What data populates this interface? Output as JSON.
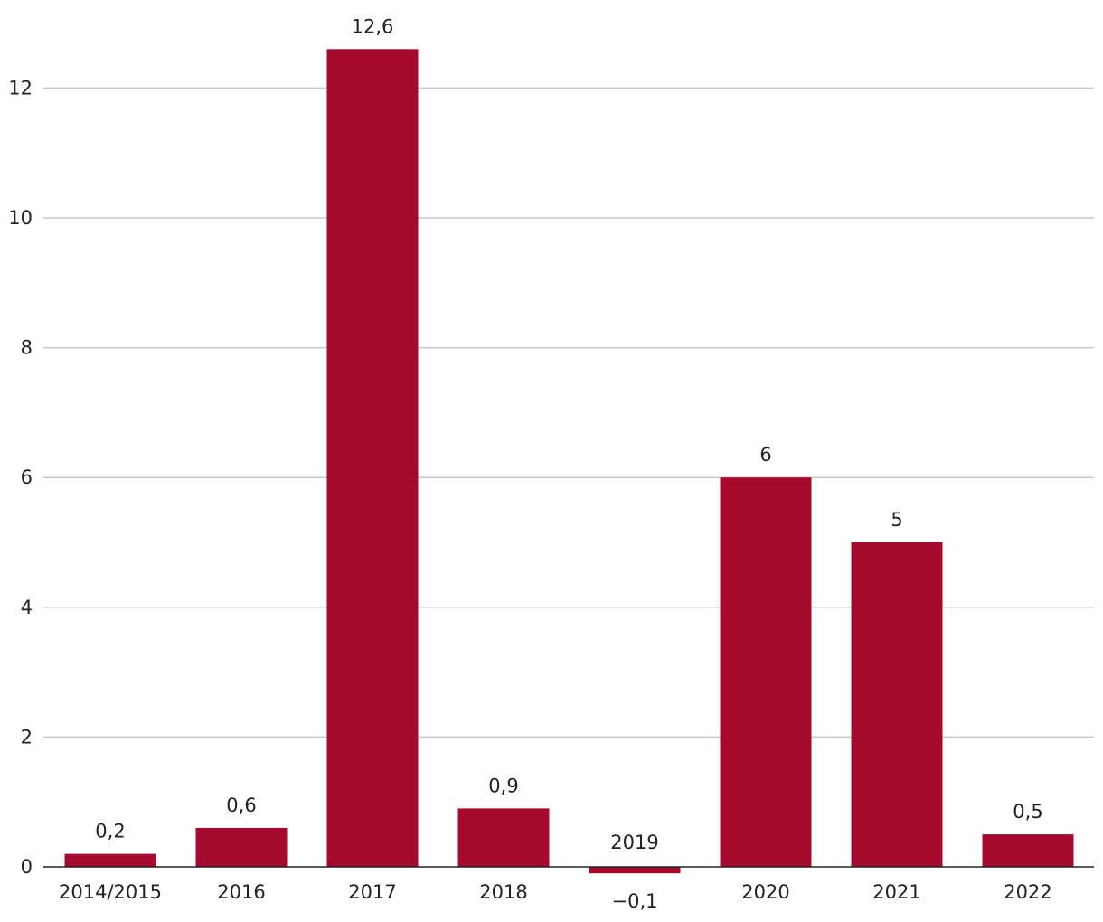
{
  "chart_data": {
    "type": "bar",
    "title": "",
    "xlabel": "",
    "ylabel": "",
    "categories": [
      "2014/2015",
      "2016",
      "2017",
      "2018",
      "2019",
      "2020",
      "2021",
      "2022"
    ],
    "values": [
      0.2,
      0.6,
      12.6,
      0.9,
      -0.1,
      6,
      5,
      0.5
    ],
    "value_labels": [
      "0,2",
      "0,6",
      "12,6",
      "0,9",
      "−0,1",
      "6",
      "5",
      "0,5"
    ],
    "ylim": [
      0,
      12.8
    ],
    "yticks": [
      0,
      2,
      4,
      6,
      8,
      10,
      12
    ],
    "grid": true,
    "legend": "none",
    "bar_color": "#a50a2e"
  }
}
